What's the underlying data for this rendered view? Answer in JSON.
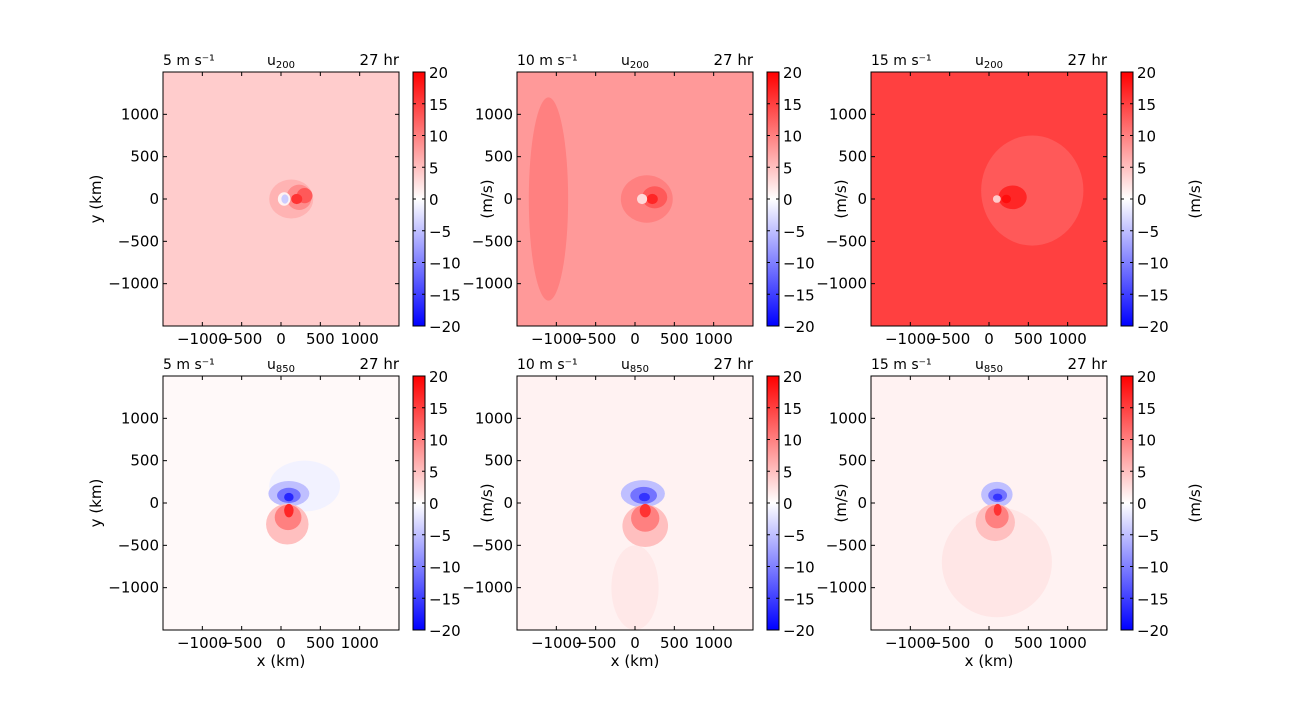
{
  "colormap": {
    "negative": "#0000ff",
    "zero": "#ffffff",
    "positive": "#ff0000"
  },
  "sub_850": "850",
  "chart_data": [
    {
      "type": "heatmap",
      "left_label": "5 m s⁻¹",
      "var": "u",
      "sub": "200",
      "time": "27 hr",
      "xlabel": "",
      "ylabel": "y (km)",
      "xlim": [
        -1500,
        1500
      ],
      "ylim": [
        -1500,
        1500
      ],
      "xticks": [
        "−1000",
        "−500",
        "0",
        "500",
        "1000"
      ],
      "xtick_values": [
        -1000,
        -500,
        0,
        500,
        1000
      ],
      "yticks": [
        "−1000",
        "−500",
        "0",
        "500",
        "1000"
      ],
      "ytick_values": [
        -1000,
        -500,
        0,
        500,
        1000
      ],
      "background_value": 4,
      "features": [
        {
          "x": 130,
          "y": 0,
          "rx": 280,
          "ry": 230,
          "value": 6
        },
        {
          "x": 230,
          "y": 20,
          "rx": 160,
          "ry": 150,
          "value": 9
        },
        {
          "x": 300,
          "y": 40,
          "rx": 100,
          "ry": 90,
          "value": 13
        },
        {
          "x": 200,
          "y": 0,
          "rx": 70,
          "ry": 60,
          "value": 16
        },
        {
          "x": 40,
          "y": 0,
          "rx": 80,
          "ry": 80,
          "value": 1
        },
        {
          "x": 50,
          "y": 0,
          "rx": 45,
          "ry": 55,
          "value": -4
        }
      ],
      "colorbar": {
        "label": "(m/s)",
        "range": [
          -20,
          20
        ],
        "ticks": [
          "20",
          "15",
          "10",
          "5",
          "0",
          "−5",
          "−10",
          "−15",
          "−20"
        ]
      }
    },
    {
      "type": "heatmap",
      "left_label": "10 m s⁻¹",
      "var": "u",
      "sub": "200",
      "time": "27 hr",
      "xlabel": "",
      "ylabel": "",
      "xlim": [
        -1500,
        1500
      ],
      "ylim": [
        -1500,
        1500
      ],
      "xticks": [
        "−1000",
        "−500",
        "0",
        "500",
        "1000"
      ],
      "xtick_values": [
        -1000,
        -500,
        0,
        500,
        1000
      ],
      "yticks": [
        "−1000",
        "−500",
        "0",
        "500",
        "1000"
      ],
      "ytick_values": [
        -1000,
        -500,
        0,
        500,
        1000
      ],
      "background_value": 8,
      "features": [
        {
          "x": -1100,
          "y": 0,
          "rx": 250,
          "ry": 1200,
          "value": 10
        },
        {
          "x": 150,
          "y": 0,
          "rx": 330,
          "ry": 280,
          "value": 10
        },
        {
          "x": 250,
          "y": 20,
          "rx": 160,
          "ry": 130,
          "value": 13
        },
        {
          "x": 220,
          "y": 0,
          "rx": 70,
          "ry": 60,
          "value": 17
        },
        {
          "x": 90,
          "y": 0,
          "rx": 65,
          "ry": 60,
          "value": 3
        }
      ],
      "colorbar": {
        "label": "(m/s)",
        "range": [
          -20,
          20
        ],
        "ticks": [
          "20",
          "15",
          "10",
          "5",
          "0",
          "−5",
          "−10",
          "−15",
          "−20"
        ]
      }
    },
    {
      "type": "heatmap",
      "left_label": "15 m s⁻¹",
      "var": "u",
      "sub": "200",
      "time": "27 hr",
      "xlabel": "",
      "ylabel": "",
      "xlim": [
        -1500,
        1500
      ],
      "ylim": [
        -1500,
        1500
      ],
      "xticks": [
        "−1000",
        "−500",
        "0",
        "500",
        "1000"
      ],
      "xtick_values": [
        -1000,
        -500,
        0,
        500,
        1000
      ],
      "yticks": [
        "−1000",
        "−500",
        "0",
        "500",
        "1000"
      ],
      "ytick_values": [
        -1000,
        -500,
        0,
        500,
        1000
      ],
      "background_value": 15,
      "features": [
        {
          "x": 550,
          "y": 100,
          "rx": 650,
          "ry": 650,
          "value": 13
        },
        {
          "x": 300,
          "y": 20,
          "rx": 180,
          "ry": 140,
          "value": 17
        },
        {
          "x": 220,
          "y": 0,
          "rx": 60,
          "ry": 50,
          "value": 19
        },
        {
          "x": 100,
          "y": 0,
          "rx": 50,
          "ry": 45,
          "value": 4
        }
      ],
      "colorbar": {
        "label": "(m/s)",
        "range": [
          -20,
          20
        ],
        "ticks": [
          "20",
          "15",
          "10",
          "5",
          "0",
          "−5",
          "−10",
          "−15",
          "−20"
        ]
      }
    },
    {
      "type": "heatmap",
      "left_label": "5 m s⁻¹",
      "var": "u",
      "sub": "850",
      "time": "27 hr",
      "xlabel": "x (km)",
      "ylabel": "y (km)",
      "xlim": [
        -1500,
        1500
      ],
      "ylim": [
        -1500,
        1500
      ],
      "xticks": [
        "−1000",
        "−500",
        "0",
        "500",
        "1000"
      ],
      "xtick_values": [
        -1000,
        -500,
        0,
        500,
        1000
      ],
      "yticks": [
        "−1000",
        "−500",
        "0",
        "500",
        "1000"
      ],
      "ytick_values": [
        -1000,
        -500,
        0,
        500,
        1000
      ],
      "background_value": 0.5,
      "features": [
        {
          "x": 300,
          "y": 200,
          "rx": 450,
          "ry": 300,
          "value": -1
        },
        {
          "x": 100,
          "y": 110,
          "rx": 260,
          "ry": 150,
          "value": -5
        },
        {
          "x": 100,
          "y": 90,
          "rx": 150,
          "ry": 90,
          "value": -11
        },
        {
          "x": 100,
          "y": 70,
          "rx": 60,
          "ry": 50,
          "value": -17
        },
        {
          "x": 80,
          "y": -250,
          "rx": 270,
          "ry": 240,
          "value": 5
        },
        {
          "x": 90,
          "y": -170,
          "rx": 170,
          "ry": 150,
          "value": 10
        },
        {
          "x": 100,
          "y": -90,
          "rx": 60,
          "ry": 80,
          "value": 17
        }
      ],
      "colorbar": {
        "label": "(m/s)",
        "range": [
          -20,
          20
        ],
        "ticks": [
          "20",
          "15",
          "10",
          "5",
          "0",
          "−5",
          "−10",
          "−15",
          "−20"
        ]
      }
    },
    {
      "type": "heatmap",
      "left_label": "10 m s⁻¹",
      "var": "u",
      "sub": "850",
      "time": "27 hr",
      "xlabel": "x (km)",
      "ylabel": "",
      "xlim": [
        -1500,
        1500
      ],
      "ylim": [
        -1500,
        1500
      ],
      "xticks": [
        "−1000",
        "−500",
        "0",
        "500",
        "1000"
      ],
      "xtick_values": [
        -1000,
        -500,
        0,
        500,
        1000
      ],
      "yticks": [
        "−1000",
        "−500",
        "0",
        "500",
        "1000"
      ],
      "ytick_values": [
        -1000,
        -500,
        0,
        500,
        1000
      ],
      "background_value": 1,
      "features": [
        {
          "x": 0,
          "y": -1000,
          "rx": 300,
          "ry": 500,
          "value": 1.8
        },
        {
          "x": 100,
          "y": 110,
          "rx": 280,
          "ry": 160,
          "value": -5
        },
        {
          "x": 110,
          "y": 90,
          "rx": 170,
          "ry": 100,
          "value": -11
        },
        {
          "x": 120,
          "y": 70,
          "rx": 70,
          "ry": 50,
          "value": -16
        },
        {
          "x": 130,
          "y": -270,
          "rx": 290,
          "ry": 250,
          "value": 5
        },
        {
          "x": 130,
          "y": -180,
          "rx": 180,
          "ry": 160,
          "value": 10
        },
        {
          "x": 130,
          "y": -90,
          "rx": 70,
          "ry": 80,
          "value": 16
        }
      ],
      "colorbar": {
        "label": "(m/s)",
        "range": [
          -20,
          20
        ],
        "ticks": [
          "20",
          "15",
          "10",
          "5",
          "0",
          "−5",
          "−10",
          "−15",
          "−20"
        ]
      }
    },
    {
      "type": "heatmap",
      "left_label": "15 m s⁻¹",
      "var": "u",
      "sub": "850",
      "time": "27 hr",
      "xlabel": "x (km)",
      "ylabel": "",
      "xlim": [
        -1500,
        1500
      ],
      "ylim": [
        -1500,
        1500
      ],
      "xticks": [
        "−1000",
        "−500",
        "0",
        "500",
        "1000"
      ],
      "xtick_values": [
        -1000,
        -500,
        0,
        500,
        1000
      ],
      "yticks": [
        "−1000",
        "−500",
        "0",
        "500",
        "1000"
      ],
      "ytick_values": [
        -1000,
        -500,
        0,
        500,
        1000
      ],
      "background_value": 1,
      "features": [
        {
          "x": 100,
          "y": -700,
          "rx": 700,
          "ry": 650,
          "value": 2
        },
        {
          "x": 100,
          "y": 100,
          "rx": 200,
          "ry": 150,
          "value": -5
        },
        {
          "x": 110,
          "y": 90,
          "rx": 120,
          "ry": 80,
          "value": -11
        },
        {
          "x": 110,
          "y": 70,
          "rx": 60,
          "ry": 40,
          "value": -16
        },
        {
          "x": 80,
          "y": -230,
          "rx": 250,
          "ry": 220,
          "value": 5
        },
        {
          "x": 100,
          "y": -160,
          "rx": 150,
          "ry": 140,
          "value": 10
        },
        {
          "x": 110,
          "y": -80,
          "rx": 50,
          "ry": 70,
          "value": 16
        }
      ],
      "colorbar": {
        "label": "(m/s)",
        "range": [
          -20,
          20
        ],
        "ticks": [
          "20",
          "15",
          "10",
          "5",
          "0",
          "−5",
          "−10",
          "−15",
          "−20"
        ]
      }
    }
  ]
}
